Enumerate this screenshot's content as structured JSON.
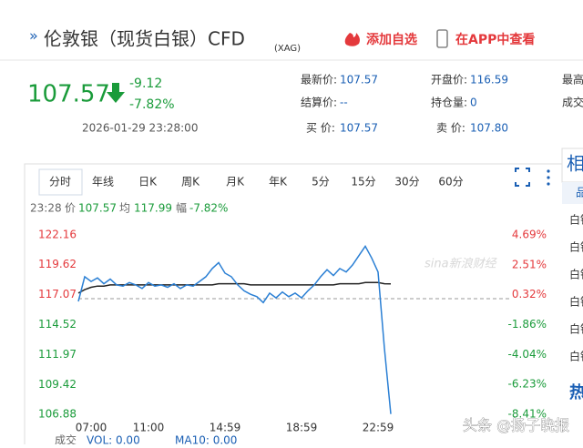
{
  "header": {
    "title": "伦敦银（现货白银）CFD",
    "code": "(XAG)",
    "add_watchlist": "添加自选",
    "open_app": "在APP中查看"
  },
  "quote": {
    "price": 107.57,
    "change": -9.12,
    "change_pct": "-7.82%",
    "time": "2026-01-29 23:28:00",
    "fields": [
      {
        "label": "最新价:",
        "value": 107.57
      },
      {
        "label": "开盘价:",
        "value": 116.59
      },
      {
        "label": "最高"
      },
      {
        "label": "结算价:",
        "value": "--"
      },
      {
        "label": "持仓量:",
        "value": 0
      },
      {
        "label": "成交"
      },
      {
        "label": "买 价:",
        "value": 107.57
      },
      {
        "label": "卖 价:",
        "value": 107.8,
        "value_label": "107.80"
      }
    ]
  },
  "tabs": [
    "分时",
    "年线",
    "日K",
    "周K",
    "月K",
    "年K",
    "5分",
    "15分",
    "30分",
    "60分"
  ],
  "info": {
    "time": "23:28",
    "price_label": "价",
    "price": 107.57,
    "avg_label": "均",
    "avg": 117.99,
    "range_label": "幅",
    "range": "-7.82%"
  },
  "chart_data": {
    "type": "line",
    "categories": [
      null,
      null,
      "07:00",
      null,
      null,
      null,
      null,
      null,
      null,
      null,
      null,
      "11:00",
      null,
      null,
      null,
      null,
      null,
      null,
      null,
      null,
      null,
      null,
      null,
      "14:59",
      null,
      null,
      null,
      null,
      null,
      null,
      null,
      null,
      null,
      null,
      null,
      "18:59",
      null,
      null,
      null,
      null,
      null,
      null,
      null,
      null,
      null,
      null,
      null,
      "22:59",
      null,
      null
    ],
    "series": [
      {
        "name": "价",
        "color": "#2a7fd4",
        "values": [
          116.5,
          118.6,
          118.2,
          118.5,
          118.0,
          118.4,
          117.9,
          117.8,
          118.1,
          117.9,
          117.6,
          118.1,
          117.8,
          117.9,
          117.7,
          118.0,
          117.6,
          117.9,
          117.8,
          118.2,
          118.6,
          119.3,
          119.8,
          118.9,
          118.6,
          117.9,
          117.4,
          117.1,
          116.9,
          116.4,
          117.2,
          116.8,
          117.3,
          116.9,
          117.2,
          116.8,
          117.4,
          117.9,
          118.6,
          119.2,
          118.7,
          119.3,
          119.0,
          119.6,
          120.4,
          121.2,
          120.2,
          119.0,
          112.5,
          106.9
        ]
      },
      {
        "name": "均",
        "color": "#222222",
        "values": [
          117.2,
          117.5,
          117.7,
          117.8,
          117.8,
          117.9,
          117.9,
          117.9,
          117.9,
          117.9,
          117.9,
          117.9,
          117.9,
          117.9,
          117.9,
          117.9,
          117.9,
          117.9,
          117.9,
          117.9,
          117.9,
          117.9,
          118.0,
          118.0,
          118.0,
          118.0,
          118.0,
          117.9,
          117.9,
          117.9,
          117.9,
          117.9,
          117.9,
          117.9,
          117.9,
          117.9,
          117.9,
          117.9,
          117.9,
          117.9,
          117.9,
          118.0,
          118.0,
          118.0,
          118.0,
          118.1,
          118.1,
          118.1,
          118.0,
          117.99
        ]
      }
    ],
    "ylim": [
      106.88,
      122.16
    ],
    "yticks": [
      122.16,
      119.62,
      117.07,
      114.52,
      111.97,
      109.42,
      106.88
    ],
    "y2lim": [
      -8.41,
      4.69
    ],
    "y2ticks": [
      {
        "value": 4.69,
        "label": "4.69%"
      },
      {
        "value": 2.51,
        "label": "2.51%"
      },
      {
        "value": 0.32,
        "label": "0.32%"
      },
      {
        "value": -1.86,
        "label": "-1.86%"
      },
      {
        "value": -4.04,
        "label": "-4.04%"
      },
      {
        "value": -6.23,
        "label": "-6.23%"
      },
      {
        "value": -8.41,
        "label": "-8.41%"
      }
    ],
    "grid": false
  },
  "volume": {
    "label": "成交",
    "vol": "VOL: 0.00",
    "ma": "MA10: 0.00"
  },
  "side": {
    "title": "相",
    "head": "品",
    "items": [
      "白银",
      "白银",
      "白银",
      "白银",
      "白银",
      "白银"
    ],
    "hot": "热"
  },
  "sina_mark": "sina新浪财经",
  "watermark": "头条 @扬子晚报"
}
